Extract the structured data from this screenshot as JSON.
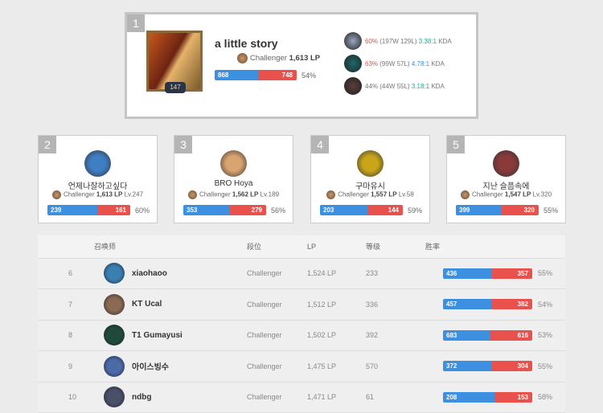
{
  "top": {
    "rank": "1",
    "name": "a little story",
    "level": "147",
    "tier": "Challenger",
    "lp": "1,613 LP",
    "wins": 868,
    "losses": 748,
    "winrate": "54%",
    "champions": [
      {
        "winrate": "60%",
        "record": "(197W 129L)",
        "kda": "3.38:1",
        "kda_suffix": "KDA",
        "wr_color": "#d9534f",
        "kda_color": "#27a88a",
        "icon_color": "#9aa6c0"
      },
      {
        "winrate": "63%",
        "record": "(99W 57L)",
        "kda": "4.78:1",
        "kda_suffix": "KDA",
        "wr_color": "#d9534f",
        "kda_color": "#3a8fd6",
        "icon_color": "#1c6b6e"
      },
      {
        "winrate": "44%",
        "record": "(44W 55L)",
        "kda": "3.18:1",
        "kda_suffix": "KDA",
        "wr_color": "#777777",
        "kda_color": "#27a88a",
        "icon_color": "#5a3e3a"
      }
    ]
  },
  "cards": [
    {
      "rank": "2",
      "name": "언제나잘하고싶다",
      "tier": "Challenger",
      "lp": "1,613 LP",
      "level": "Lv.247",
      "wins": 239,
      "losses": 161,
      "winrate": "60%",
      "icon_color": "#3f7ec4"
    },
    {
      "rank": "3",
      "name": "BRO Hoya",
      "tier": "Challenger",
      "lp": "1,562 LP",
      "level": "Lv.189",
      "wins": 353,
      "losses": 279,
      "winrate": "56%",
      "icon_color": "#d9a470"
    },
    {
      "rank": "4",
      "name": "구마유시",
      "tier": "Challenger",
      "lp": "1,557 LP",
      "level": "Lv.58",
      "wins": 203,
      "losses": 144,
      "winrate": "59%",
      "icon_color": "#c9a51a"
    },
    {
      "rank": "5",
      "name": "지난 슬픔속에",
      "tier": "Challenger",
      "lp": "1,547 LP",
      "level": "Lv.320",
      "wins": 399,
      "losses": 320,
      "winrate": "55%",
      "icon_color": "#8a3a3a"
    }
  ],
  "table": {
    "headers": [
      "",
      "召唤师",
      "段位",
      "LP",
      "等级",
      "胜率"
    ],
    "rows": [
      {
        "rank": "6",
        "name": "xiaohaoo",
        "tier": "Challenger",
        "lp": "1,524 LP",
        "level": "233",
        "wins": 436,
        "losses": 357,
        "winrate": "55%",
        "icon_color": "#3a7fb0"
      },
      {
        "rank": "7",
        "name": "KT Ucal",
        "tier": "Challenger",
        "lp": "1,512 LP",
        "level": "336",
        "wins": 457,
        "losses": 382,
        "winrate": "54%",
        "icon_color": "#8a6a50"
      },
      {
        "rank": "8",
        "name": "T1 Gumayusi",
        "tier": "Challenger",
        "lp": "1,502 LP",
        "level": "392",
        "wins": 683,
        "losses": 616,
        "winrate": "53%",
        "icon_color": "#1f4a38"
      },
      {
        "rank": "9",
        "name": "아이스빙수",
        "tier": "Challenger",
        "lp": "1,475 LP",
        "level": "570",
        "wins": 372,
        "losses": 304,
        "winrate": "55%",
        "icon_color": "#4a6aa8"
      },
      {
        "rank": "10",
        "name": "ndbg",
        "tier": "Challenger",
        "lp": "1,471 LP",
        "level": "61",
        "wins": 208,
        "losses": 153,
        "winrate": "58%",
        "icon_color": "#4a5068"
      }
    ]
  }
}
